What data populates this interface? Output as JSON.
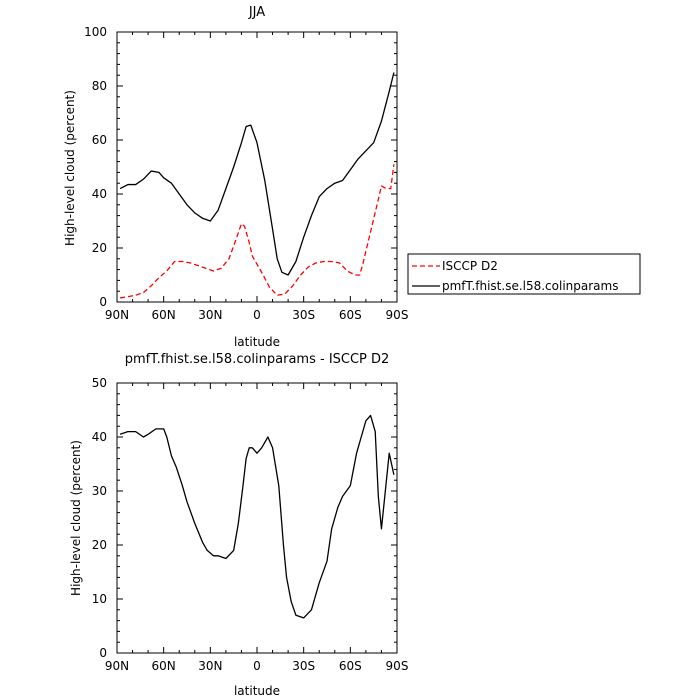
{
  "chart_data": [
    {
      "type": "line",
      "title": "JJA",
      "xlabel": "latitude",
      "ylabel": "High-level cloud (percent)",
      "xlim": [
        90,
        -90
      ],
      "ylim": [
        0,
        100
      ],
      "x_ticks": [
        90,
        60,
        30,
        0,
        -30,
        -60,
        -90
      ],
      "x_tick_labels": [
        "90N",
        "60N",
        "30N",
        "0",
        "30S",
        "60S",
        "90S"
      ],
      "y_ticks": [
        0,
        20,
        40,
        60,
        80,
        100
      ],
      "y_tick_labels": [
        "0",
        "20",
        "40",
        "60",
        "80",
        "100"
      ],
      "grid": false,
      "legend": "right",
      "series": [
        {
          "name": "ISCCP D2",
          "color": "#ff0000",
          "dash": "dashed",
          "x": [
            88,
            83,
            78,
            73,
            68,
            63,
            58,
            53,
            48,
            43,
            38,
            33,
            28,
            23,
            18,
            13,
            10,
            8,
            5,
            3,
            0,
            -3,
            -8,
            -13,
            -18,
            -23,
            -28,
            -33,
            -38,
            -43,
            -48,
            -53,
            -58,
            -63,
            -66,
            -68,
            -73,
            -78,
            -80,
            -83,
            -86,
            -88
          ],
          "y": [
            1.5,
            2,
            2.5,
            3.5,
            6,
            9,
            11.5,
            15,
            15,
            14.5,
            13.5,
            12.5,
            11.5,
            12.5,
            16,
            24,
            29,
            28,
            22,
            17,
            14,
            11,
            5.5,
            2.5,
            3,
            6,
            10,
            13,
            14.5,
            15,
            15,
            14.5,
            11.5,
            10,
            10,
            14,
            26,
            38,
            43,
            42,
            42,
            51
          ]
        },
        {
          "name": "pmfT.fhist.se.l58.colinparams",
          "color": "#000000",
          "dash": "solid",
          "x": [
            88,
            83,
            78,
            73,
            68,
            63,
            60,
            55,
            50,
            45,
            40,
            35,
            30,
            25,
            20,
            15,
            10,
            7,
            4,
            0,
            -5,
            -10,
            -13,
            -16,
            -20,
            -25,
            -30,
            -35,
            -40,
            -45,
            -50,
            -55,
            -60,
            -65,
            -70,
            -75,
            -80,
            -85,
            -88
          ],
          "y": [
            42,
            43.5,
            43.5,
            45.5,
            48.5,
            48,
            46,
            44,
            40,
            36,
            33,
            31,
            30,
            34,
            42,
            50,
            59,
            65,
            65.5,
            59,
            45,
            27,
            16,
            11,
            10,
            15,
            24,
            32,
            39,
            42,
            44,
            45,
            49,
            53,
            56,
            59,
            67,
            78,
            85
          ]
        }
      ]
    },
    {
      "type": "line",
      "title": "pmfT.fhist.se.l58.colinparams - ISCCP D2",
      "xlabel": "latitude",
      "ylabel": "High-level cloud (percent)",
      "xlim": [
        90,
        -90
      ],
      "ylim": [
        0,
        50
      ],
      "x_ticks": [
        90,
        60,
        30,
        0,
        -30,
        -60,
        -90
      ],
      "x_tick_labels": [
        "90N",
        "60N",
        "30N",
        "0",
        "30S",
        "60S",
        "90S"
      ],
      "y_ticks": [
        0,
        10,
        20,
        30,
        40,
        50
      ],
      "y_tick_labels": [
        "0",
        "10",
        "20",
        "30",
        "40",
        "50"
      ],
      "grid": false,
      "series": [
        {
          "color": "#000000",
          "dash": "solid",
          "x": [
            88,
            83,
            78,
            73,
            70,
            65,
            60,
            58,
            55,
            52,
            48,
            45,
            40,
            35,
            32,
            28,
            25,
            20,
            15,
            12,
            9,
            7,
            5,
            3,
            0,
            -3,
            -7,
            -10,
            -14,
            -17,
            -19,
            -22,
            -25,
            -30,
            -35,
            -40,
            -45,
            -48,
            -52,
            -55,
            -60,
            -64,
            -67,
            -70,
            -73,
            -76,
            -78,
            -80,
            -85,
            -88
          ],
          "y": [
            40.5,
            41,
            41,
            40,
            40.5,
            41.5,
            41.5,
            40,
            36.5,
            34.5,
            31,
            28,
            24,
            20.5,
            19,
            18,
            18,
            17.5,
            19,
            24,
            31,
            36,
            38,
            38,
            37,
            38,
            40,
            38,
            31,
            20,
            14,
            9.5,
            7,
            6.5,
            8,
            13,
            17,
            23,
            27,
            29,
            31,
            37,
            40,
            43,
            44,
            41,
            29,
            23,
            37,
            33
          ]
        }
      ]
    }
  ]
}
